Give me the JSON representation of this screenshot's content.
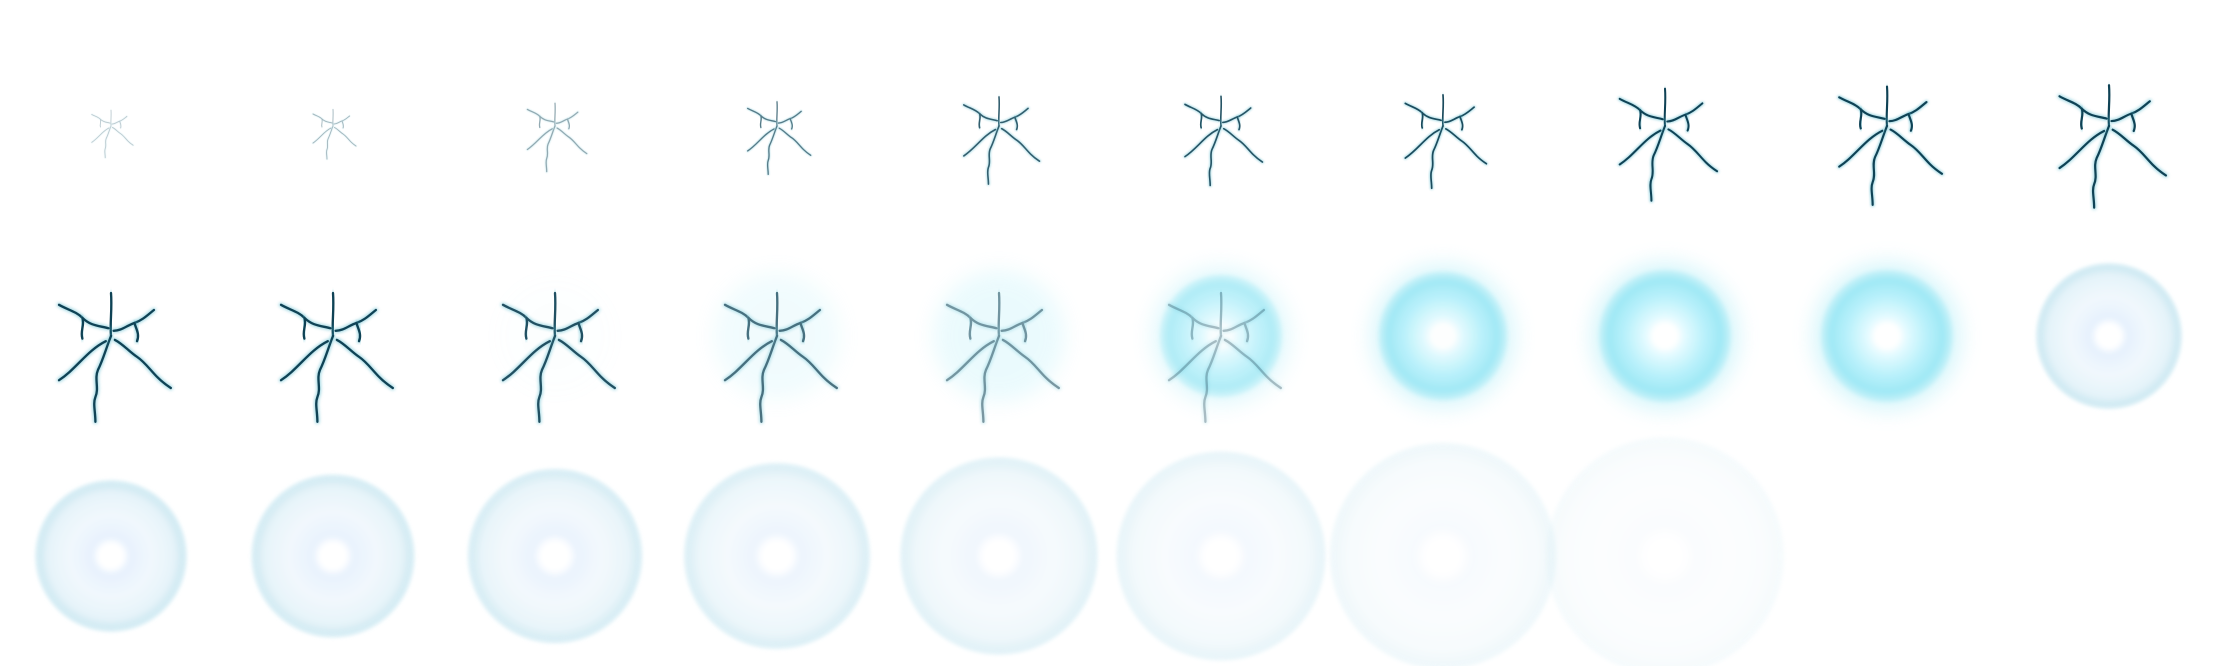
{
  "sprite_sheet": {
    "rows": 3,
    "columns": 10,
    "frame_count": 29,
    "colors": {
      "background": "#ffffff",
      "crack": "#0f4255",
      "crack_edge": "#4ab3c8",
      "glow_inner": "#ffffff",
      "glow_mid": "#c5f3fb",
      "glow_outer": "#8fe6f4",
      "ring_soft": "#e7f6fb",
      "ring_edge": "#b9e1ee"
    },
    "frames": [
      {
        "index": 1,
        "phase": "crack",
        "crack_level": 0.22,
        "crack_opacity": 0.28,
        "glow": 0,
        "ring": 0,
        "ring_opacity": 0
      },
      {
        "index": 2,
        "phase": "crack",
        "crack_level": 0.24,
        "crack_opacity": 0.38,
        "glow": 0,
        "ring": 0,
        "ring_opacity": 0
      },
      {
        "index": 3,
        "phase": "crack",
        "crack_level": 0.42,
        "crack_opacity": 0.45,
        "glow": 0,
        "ring": 0,
        "ring_opacity": 0
      },
      {
        "index": 4,
        "phase": "crack",
        "crack_level": 0.46,
        "crack_opacity": 0.7,
        "glow": 0,
        "ring": 0,
        "ring_opacity": 0
      },
      {
        "index": 5,
        "phase": "crack",
        "crack_level": 0.6,
        "crack_opacity": 0.85,
        "glow": 0,
        "ring": 0,
        "ring_opacity": 0
      },
      {
        "index": 6,
        "phase": "crack",
        "crack_level": 0.62,
        "crack_opacity": 0.9,
        "glow": 0,
        "ring": 0,
        "ring_opacity": 0
      },
      {
        "index": 7,
        "phase": "crack",
        "crack_level": 0.66,
        "crack_opacity": 0.95,
        "glow": 0,
        "ring": 0,
        "ring_opacity": 0
      },
      {
        "index": 8,
        "phase": "crack",
        "crack_level": 0.84,
        "crack_opacity": 1,
        "glow": 0,
        "ring": 0,
        "ring_opacity": 0
      },
      {
        "index": 9,
        "phase": "crack",
        "crack_level": 0.9,
        "crack_opacity": 1,
        "glow": 0,
        "ring": 0,
        "ring_opacity": 0
      },
      {
        "index": 10,
        "phase": "crack",
        "crack_level": 0.94,
        "crack_opacity": 1,
        "glow": 0,
        "ring": 0,
        "ring_opacity": 0
      },
      {
        "index": 11,
        "phase": "crack",
        "crack_level": 1.0,
        "crack_opacity": 1,
        "glow": 0,
        "ring": 0,
        "ring_opacity": 0
      },
      {
        "index": 12,
        "phase": "crack",
        "crack_level": 1.0,
        "crack_opacity": 1,
        "glow": 0,
        "ring": 0,
        "ring_opacity": 0
      },
      {
        "index": 13,
        "phase": "crack",
        "crack_level": 1.0,
        "crack_opacity": 0.92,
        "glow": 0.05,
        "ring": 0,
        "ring_opacity": 0
      },
      {
        "index": 14,
        "phase": "crack-glow",
        "crack_level": 1.0,
        "crack_opacity": 0.75,
        "glow": 0.35,
        "ring": 0,
        "ring_opacity": 0
      },
      {
        "index": 15,
        "phase": "crack-glow",
        "crack_level": 1.0,
        "crack_opacity": 0.55,
        "glow": 0.5,
        "ring": 0,
        "ring_opacity": 0
      },
      {
        "index": 16,
        "phase": "shatter",
        "crack_level": 1.0,
        "crack_opacity": 0.35,
        "glow": 0.7,
        "ring": 0,
        "ring_opacity": 0
      },
      {
        "index": 17,
        "phase": "glow",
        "crack_level": 0,
        "crack_opacity": 0,
        "glow": 0.9,
        "ring": 0,
        "ring_opacity": 0
      },
      {
        "index": 18,
        "phase": "glow",
        "crack_level": 0,
        "crack_opacity": 0,
        "glow": 1.0,
        "ring": 0,
        "ring_opacity": 0
      },
      {
        "index": 19,
        "phase": "glow",
        "crack_level": 0,
        "crack_opacity": 0,
        "glow": 1.0,
        "ring": 0,
        "ring_opacity": 0
      },
      {
        "index": 20,
        "phase": "ring",
        "crack_level": 0,
        "crack_opacity": 0,
        "glow": 0,
        "ring": 0.1,
        "ring_opacity": 1.0
      },
      {
        "index": 21,
        "phase": "ring",
        "crack_level": 0,
        "crack_opacity": 0,
        "glow": 0,
        "ring": 0.15,
        "ring_opacity": 0.95
      },
      {
        "index": 22,
        "phase": "ring",
        "crack_level": 0,
        "crack_opacity": 0,
        "glow": 0,
        "ring": 0.25,
        "ring_opacity": 0.9
      },
      {
        "index": 23,
        "phase": "ring",
        "crack_level": 0,
        "crack_opacity": 0,
        "glow": 0,
        "ring": 0.35,
        "ring_opacity": 0.82
      },
      {
        "index": 24,
        "phase": "ring",
        "crack_level": 0,
        "crack_opacity": 0,
        "glow": 0,
        "ring": 0.45,
        "ring_opacity": 0.72
      },
      {
        "index": 25,
        "phase": "ring",
        "crack_level": 0,
        "crack_opacity": 0,
        "glow": 0,
        "ring": 0.55,
        "ring_opacity": 0.6
      },
      {
        "index": 26,
        "phase": "ring",
        "crack_level": 0,
        "crack_opacity": 0,
        "glow": 0,
        "ring": 0.65,
        "ring_opacity": 0.45
      },
      {
        "index": 27,
        "phase": "ring",
        "crack_level": 0,
        "crack_opacity": 0,
        "glow": 0,
        "ring": 0.8,
        "ring_opacity": 0.3
      },
      {
        "index": 28,
        "phase": "ring",
        "crack_level": 0,
        "crack_opacity": 0,
        "glow": 0,
        "ring": 0.9,
        "ring_opacity": 0.18
      },
      {
        "index": 29,
        "phase": "ring",
        "crack_level": 0,
        "crack_opacity": 0,
        "glow": 0,
        "ring": 0.8,
        "ring_opacity": 0.0
      }
    ]
  }
}
